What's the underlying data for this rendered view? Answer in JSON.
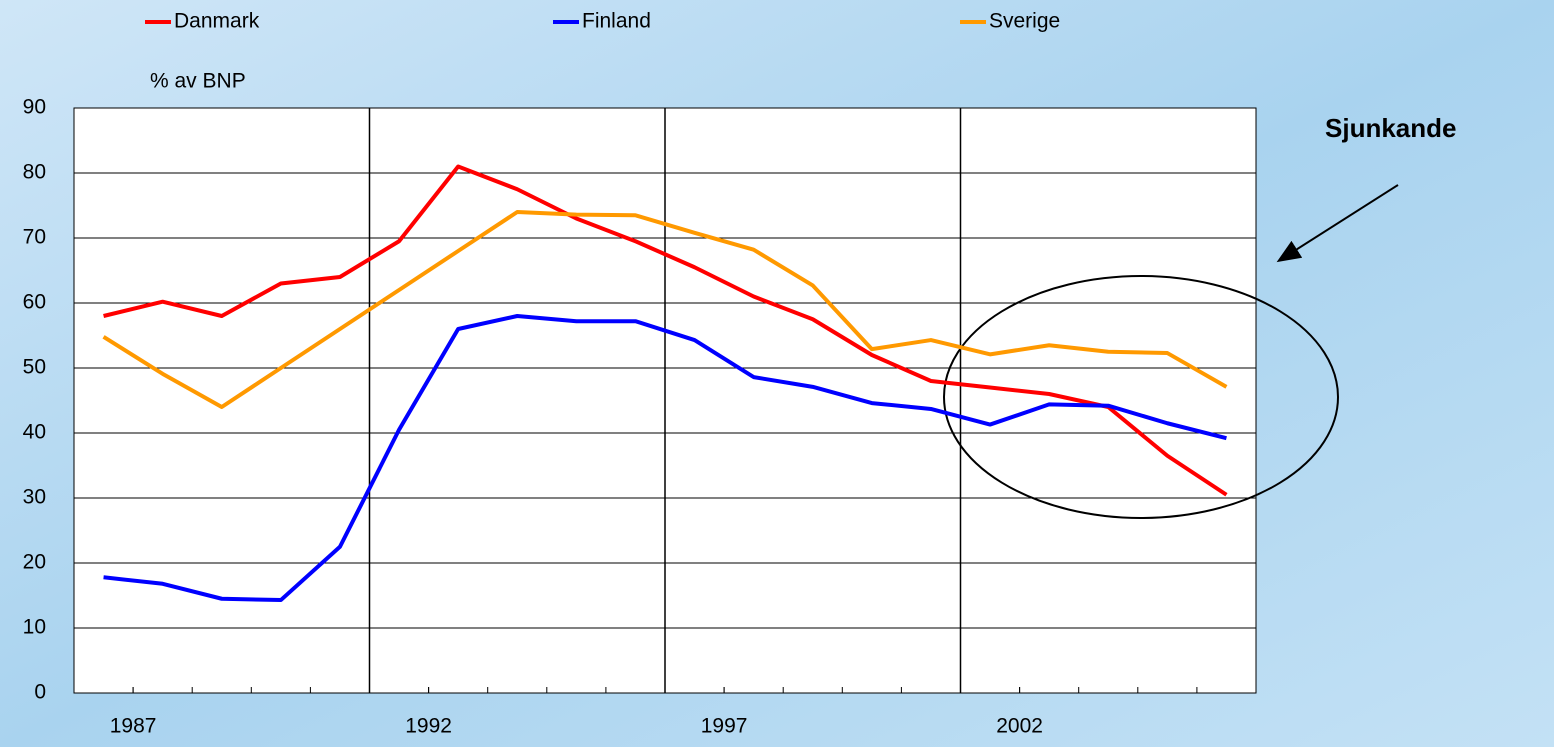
{
  "chart_data": {
    "type": "line",
    "y_label": "% av BNP",
    "annotation": "Sjunkande",
    "x": [
      1986.5,
      1987.5,
      1988.5,
      1989.5,
      1990.5,
      1991.5,
      1992.5,
      1993.5,
      1994.5,
      1995.5,
      1996.5,
      1997.5,
      1998.5,
      1999.5,
      2000.5,
      2001.5,
      2002.5,
      2003.5,
      2004.5,
      2005.5
    ],
    "series": [
      {
        "name": "Danmark",
        "color": "#ff0000",
        "values": [
          58,
          60.2,
          58,
          63,
          64,
          69.5,
          81,
          77.5,
          73,
          69.5,
          65.5,
          61,
          57.5,
          52,
          48,
          47,
          46,
          44,
          36.5,
          30.5
        ]
      },
      {
        "name": "Finland",
        "color": "#0000ff",
        "values": [
          17.8,
          16.8,
          14.5,
          14.3,
          22.5,
          40.5,
          56,
          58,
          57.2,
          57.2,
          54.3,
          48.6,
          47.1,
          44.6,
          43.7,
          41.3,
          44.4,
          44.2,
          41.5,
          39.2
        ]
      },
      {
        "name": "Sverige",
        "color": "#ff9900",
        "values": [
          54.8,
          49.1,
          44,
          50,
          56,
          62,
          68,
          74,
          73.6,
          73.5,
          70.8,
          68.2,
          62.7,
          52.9,
          54.3,
          52.1,
          53.5,
          52.5,
          52.3,
          47.1
        ]
      }
    ],
    "xlim": [
      1986,
      2006
    ],
    "xticks": [
      1987,
      1992,
      1997,
      2002
    ],
    "xgrid": [
      1991,
      1996,
      2001
    ],
    "xminor_step": 1,
    "ylim": [
      0,
      90
    ],
    "yticks": [
      0,
      10,
      20,
      30,
      40,
      50,
      60,
      70,
      80,
      90
    ],
    "grid": true
  }
}
